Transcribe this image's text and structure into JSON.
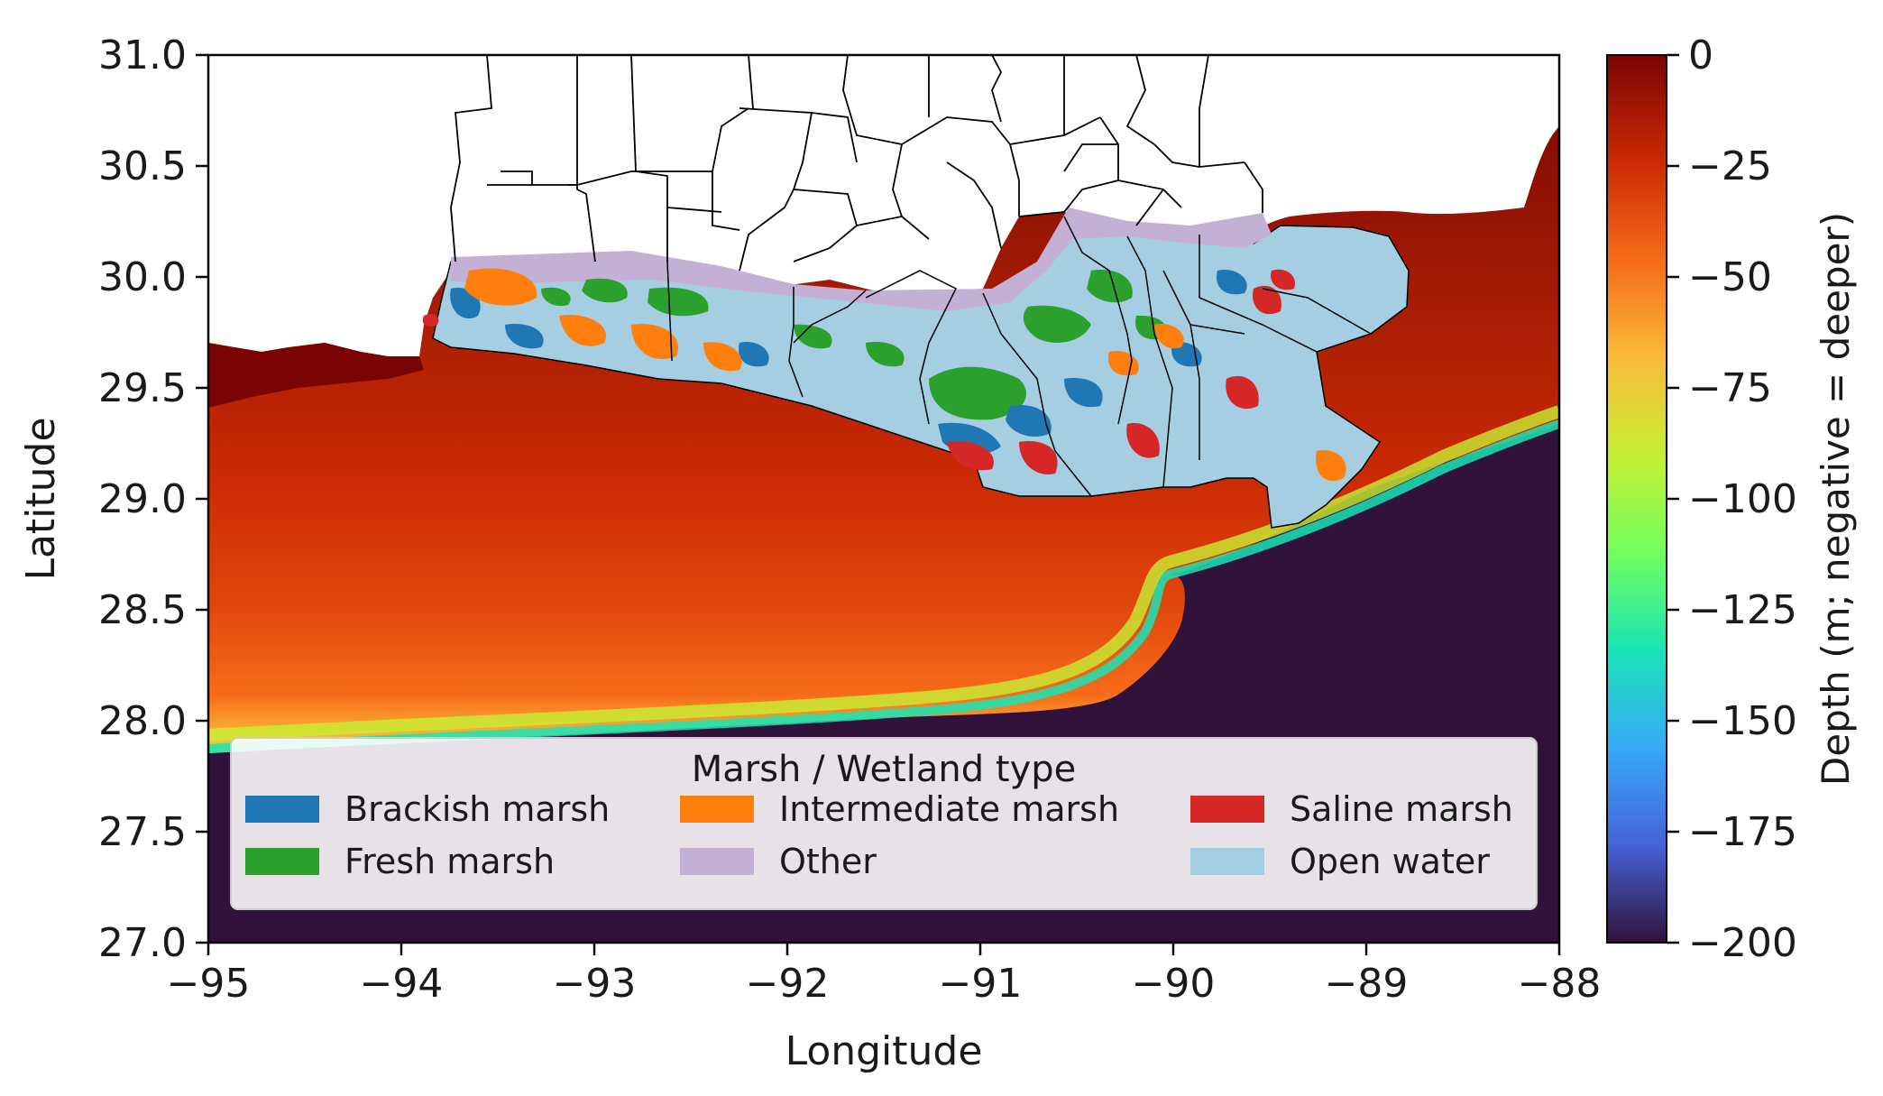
{
  "x_axis": {
    "label": "Longitude",
    "min": -95,
    "max": -88,
    "ticks": [
      {
        "value": -95,
        "label": "−95"
      },
      {
        "value": -94,
        "label": "−94"
      },
      {
        "value": -93,
        "label": "−93"
      },
      {
        "value": -92,
        "label": "−92"
      },
      {
        "value": -91,
        "label": "−91"
      },
      {
        "value": -90,
        "label": "−90"
      },
      {
        "value": -89,
        "label": "−89"
      },
      {
        "value": -88,
        "label": "−88"
      }
    ]
  },
  "y_axis": {
    "label": "Latitude",
    "min": 27.0,
    "max": 31.0,
    "ticks": [
      {
        "value": 27.0,
        "label": "27.0"
      },
      {
        "value": 27.5,
        "label": "27.5"
      },
      {
        "value": 28.0,
        "label": "28.0"
      },
      {
        "value": 28.5,
        "label": "28.5"
      },
      {
        "value": 29.0,
        "label": "29.0"
      },
      {
        "value": 29.5,
        "label": "29.5"
      },
      {
        "value": 30.0,
        "label": "30.0"
      },
      {
        "value": 30.5,
        "label": "30.5"
      },
      {
        "value": 31.0,
        "label": "31.0"
      }
    ]
  },
  "colorbar": {
    "label": "Depth (m; negative = deeper)",
    "min": -200,
    "max": 0,
    "ticks": [
      {
        "value": 0,
        "label": "0"
      },
      {
        "value": -25,
        "label": "−25"
      },
      {
        "value": -50,
        "label": "−50"
      },
      {
        "value": -75,
        "label": "−75"
      },
      {
        "value": -100,
        "label": "−100"
      },
      {
        "value": -125,
        "label": "−125"
      },
      {
        "value": -150,
        "label": "−150"
      },
      {
        "value": -175,
        "label": "−175"
      },
      {
        "value": -200,
        "label": "−200"
      }
    ],
    "colors": [
      "#30123b",
      "#4662d7",
      "#36aaf9",
      "#1ae4b6",
      "#72fe5e",
      "#c7ef34",
      "#faba39",
      "#f66b19",
      "#cb2a04",
      "#7a0403"
    ]
  },
  "legend": {
    "title": "Marsh / Wetland type",
    "entries": [
      {
        "label": "Brackish marsh",
        "color": "#1f77b4"
      },
      {
        "label": "Intermediate marsh",
        "color": "#ff7f0e"
      },
      {
        "label": "Saline marsh",
        "color": "#d62728"
      },
      {
        "label": "Fresh marsh",
        "color": "#2ca02c"
      },
      {
        "label": "Other",
        "color": "#c5b0d5"
      },
      {
        "label": "Open water",
        "color": "#a6cee3"
      }
    ]
  },
  "chart_data": {
    "type": "heatmap",
    "xlabel": "Longitude",
    "ylabel": "Latitude",
    "xlim": [
      -95,
      -88
    ],
    "ylim": [
      27.0,
      31.0
    ],
    "colorbar_label": "Depth (m; negative = deeper)",
    "colorbar_range": [
      -200,
      0
    ],
    "legend_title": "Marsh / Wetland type",
    "legend_placement": "lower-center",
    "categories": [
      "Brackish marsh",
      "Intermediate marsh",
      "Saline marsh",
      "Fresh marsh",
      "Other",
      "Open water"
    ],
    "colors": {
      "land": "#ffffff",
      "county_lines": "#000000",
      "deep_water": "#30123b"
    }
  }
}
